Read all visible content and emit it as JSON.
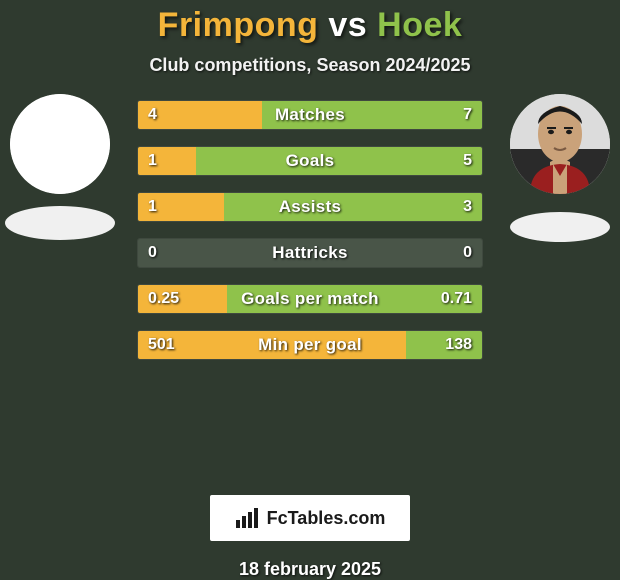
{
  "background_color": "#2f3a2f",
  "title": {
    "player1": "Frimpong",
    "vs": "vs",
    "player2": "Hoek",
    "player1_color": "#f4b53a",
    "vs_color": "#ffffff",
    "player2_color": "#8fc24b",
    "fontsize": 34
  },
  "subtitle": {
    "text": "Club competitions, Season 2024/2025",
    "color": "#f2f2f2",
    "fontsize": 18
  },
  "avatars": {
    "left": {
      "has_face": false,
      "bg": "#ffffff"
    },
    "right": {
      "has_face": true,
      "bg": "#e8e8e8"
    }
  },
  "club_ellipse_color": "#f0f0f0",
  "bars": {
    "left_color": "#f4b53a",
    "right_color": "#8fc24b",
    "empty_color": "#495548",
    "height": 30,
    "gap": 16,
    "label_color": "#ffffff",
    "label_fontsize": 17,
    "value_color": "#ffffff",
    "value_fontsize": 16,
    "rows": [
      {
        "label": "Matches",
        "left_value": "4",
        "right_value": "7",
        "left_pct": 36,
        "right_pct": 64
      },
      {
        "label": "Goals",
        "left_value": "1",
        "right_value": "5",
        "left_pct": 17,
        "right_pct": 83
      },
      {
        "label": "Assists",
        "left_value": "1",
        "right_value": "3",
        "left_pct": 25,
        "right_pct": 75
      },
      {
        "label": "Hattricks",
        "left_value": "0",
        "right_value": "0",
        "left_pct": 0,
        "right_pct": 0
      },
      {
        "label": "Goals per match",
        "left_value": "0.25",
        "right_value": "0.71",
        "left_pct": 26,
        "right_pct": 74
      },
      {
        "label": "Min per goal",
        "left_value": "501",
        "right_value": "138",
        "left_pct": 78,
        "right_pct": 22
      }
    ]
  },
  "branding": {
    "text": "FcTables.com",
    "bg": "#ffffff",
    "text_color": "#1a1a1a",
    "icon_color": "#1a1a1a",
    "fontsize": 18
  },
  "date": {
    "text": "18 february 2025",
    "color": "#ffffff",
    "fontsize": 18
  }
}
